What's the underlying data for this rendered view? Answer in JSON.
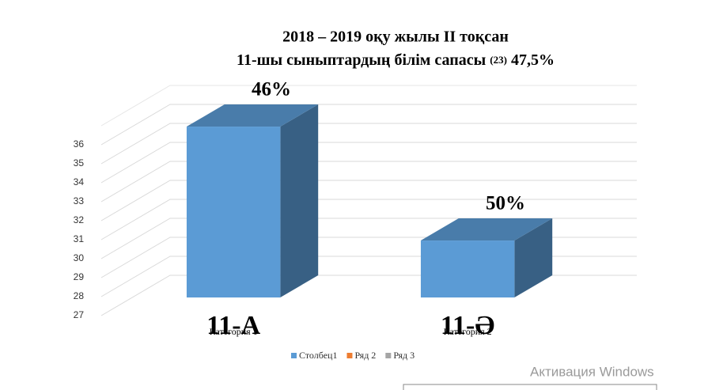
{
  "chart_data": {
    "type": "bar3d",
    "title": [
      "2018 – 2019 оқу жылы II тоқсан",
      "11-шы сыныптардың білім сапасы",
      "(23)",
      "47,5%"
    ],
    "categories": [
      "Категория 1",
      "Категория 2"
    ],
    "annotations": [
      "11-А",
      "11-Ә"
    ],
    "series": [
      {
        "name": "Столбец1",
        "color": "#5b9bd5",
        "values": [
          36,
          30
        ],
        "value_labels": [
          "46%",
          "50%"
        ]
      },
      {
        "name": "Ряд 2",
        "color": "#ed7d31",
        "values": [
          null,
          null
        ]
      },
      {
        "name": "Ряд 3",
        "color": "#a5a5a5",
        "values": [
          null,
          null
        ]
      }
    ],
    "ylim": [
      27,
      37
    ],
    "yticks": [
      27,
      28,
      29,
      30,
      31,
      32,
      33,
      34,
      35,
      36
    ],
    "grid": true,
    "legend": "bottom",
    "watermark": "Активация Windows"
  }
}
